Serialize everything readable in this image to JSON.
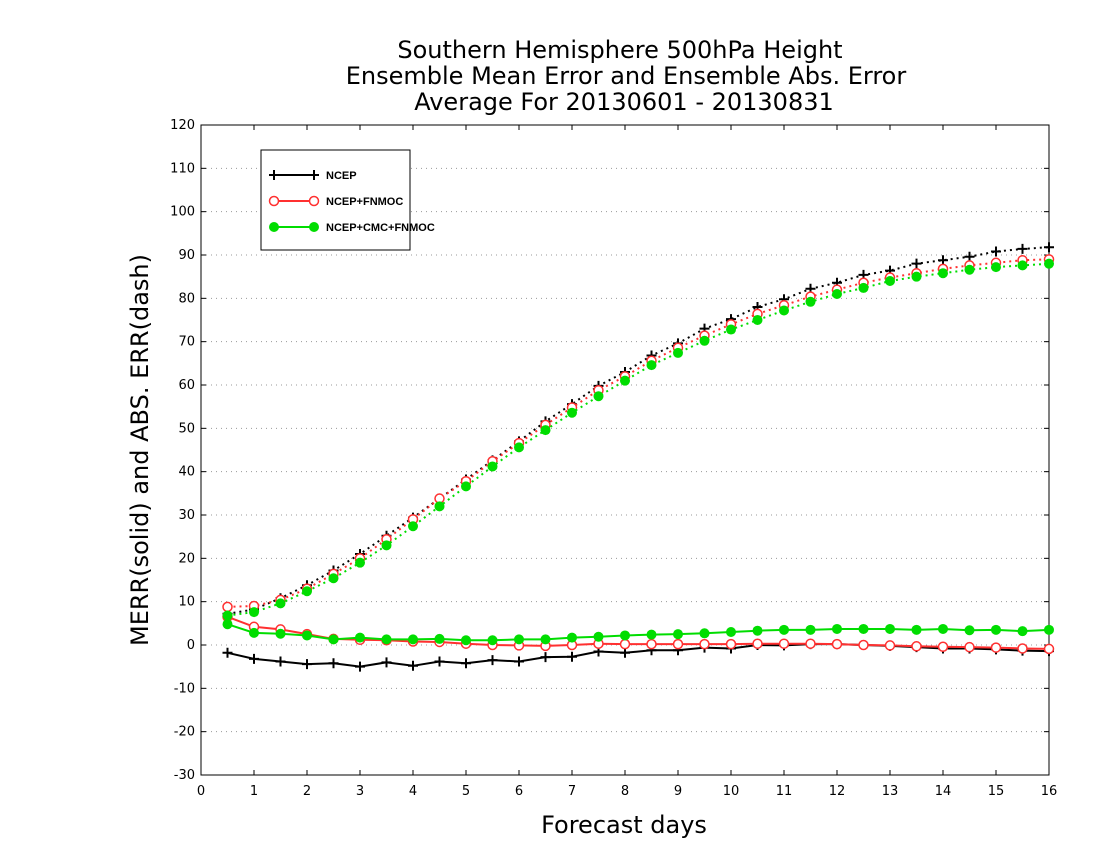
{
  "chart_data": {
    "type": "line",
    "title": [
      "Southern Hemisphere 500hPa Height",
      "Ensemble Mean Error and Ensemble Abs. Error",
      "Average For 20130601 - 20130831"
    ],
    "xlabel": "Forecast days",
    "ylabel": "MERR(solid) and ABS. ERR(dash)",
    "xlim": [
      0,
      16
    ],
    "ylim": [
      -30,
      120
    ],
    "xticks": [
      0,
      1,
      2,
      3,
      4,
      5,
      6,
      7,
      8,
      9,
      10,
      11,
      12,
      13,
      14,
      15,
      16
    ],
    "yticks": [
      -30,
      -20,
      -10,
      0,
      10,
      20,
      30,
      40,
      50,
      60,
      70,
      80,
      90,
      100,
      110,
      120
    ],
    "grid": "horizontal dotted",
    "legend_position": "top-left",
    "x": [
      0.5,
      1.0,
      1.5,
      2.0,
      2.5,
      3.0,
      3.5,
      4.0,
      4.5,
      5.0,
      5.5,
      6.0,
      6.5,
      7.0,
      7.5,
      8.0,
      8.5,
      9.0,
      9.5,
      10.0,
      10.5,
      11.0,
      11.5,
      12.0,
      12.5,
      13.0,
      13.5,
      14.0,
      14.5,
      15.0,
      15.5,
      16.0
    ],
    "series": [
      {
        "name": "NCEP",
        "color": "#000000",
        "marker": "plus",
        "merr": [
          -1.8,
          -3.2,
          -3.8,
          -4.4,
          -4.2,
          -5.0,
          -4.0,
          -4.8,
          -3.8,
          -4.2,
          -3.5,
          -3.8,
          -2.8,
          -2.7,
          -1.5,
          -1.8,
          -1.2,
          -1.2,
          -0.6,
          -0.8,
          0.0,
          -0.1,
          0.2,
          0.2,
          0.0,
          -0.2,
          -0.5,
          -0.8,
          -0.8,
          -1.0,
          -1.3,
          -1.4
        ],
        "abs_err": [
          7.2,
          8.2,
          10.8,
          13.8,
          17.2,
          21.0,
          25.2,
          29.4,
          33.8,
          38.2,
          42.6,
          47.0,
          51.6,
          55.6,
          59.8,
          63.0,
          66.8,
          69.6,
          73.0,
          75.2,
          78.0,
          79.8,
          82.2,
          83.6,
          85.4,
          86.4,
          88.0,
          88.8,
          89.6,
          90.8,
          91.4,
          91.8
        ]
      },
      {
        "name": "NCEP+FNMOC",
        "color": "#ff3030",
        "marker": "circle-open",
        "merr": [
          6.5,
          4.2,
          3.6,
          2.5,
          1.4,
          1.2,
          1.1,
          0.8,
          0.7,
          0.3,
          0.0,
          -0.1,
          -0.2,
          0.0,
          0.3,
          0.2,
          0.2,
          0.2,
          0.2,
          0.2,
          0.3,
          0.3,
          0.3,
          0.2,
          0.0,
          -0.1,
          -0.3,
          -0.4,
          -0.5,
          -0.6,
          -0.8,
          -0.9
        ],
        "abs_err": [
          8.8,
          9.0,
          10.4,
          13.0,
          16.4,
          20.0,
          24.4,
          29.0,
          33.8,
          37.8,
          42.4,
          46.6,
          50.8,
          54.8,
          58.8,
          62.0,
          65.6,
          68.6,
          71.4,
          74.0,
          76.4,
          78.4,
          80.4,
          82.0,
          83.6,
          84.8,
          85.8,
          86.8,
          87.6,
          88.2,
          88.8,
          89.0
        ]
      },
      {
        "name": "NCEP+CMC+FNMOC",
        "color": "#00dd00",
        "marker": "circle-filled",
        "merr": [
          4.8,
          2.8,
          2.6,
          2.2,
          1.3,
          1.7,
          1.3,
          1.3,
          1.4,
          1.1,
          1.1,
          1.3,
          1.3,
          1.7,
          1.9,
          2.2,
          2.4,
          2.5,
          2.7,
          3.0,
          3.3,
          3.5,
          3.5,
          3.7,
          3.7,
          3.7,
          3.5,
          3.7,
          3.4,
          3.5,
          3.2,
          3.5
        ],
        "abs_err": [
          6.8,
          7.6,
          9.6,
          12.4,
          15.4,
          19.0,
          23.0,
          27.4,
          32.0,
          36.6,
          41.2,
          45.6,
          49.6,
          53.6,
          57.4,
          61.0,
          64.6,
          67.4,
          70.2,
          72.8,
          75.0,
          77.2,
          79.2,
          81.0,
          82.4,
          84.0,
          85.0,
          85.8,
          86.6,
          87.2,
          87.6,
          88.0
        ]
      }
    ]
  }
}
